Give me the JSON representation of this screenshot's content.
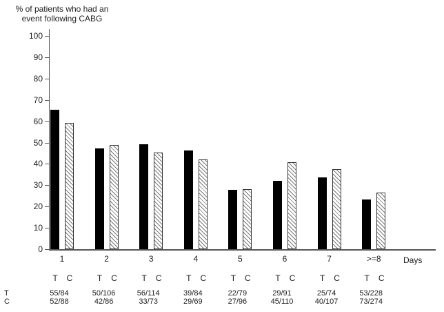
{
  "title": {
    "line1": "% of patients who had an",
    "line2": "event following CABG"
  },
  "footer": {
    "row_t_label": "T",
    "row_c_label": "C"
  },
  "chart_data": {
    "type": "bar",
    "title": "% of patients who had an event following CABG",
    "xlabel": "Days",
    "ylabel": "% of patients who had an event following CABG",
    "ylim": [
      0,
      100
    ],
    "yticks": [
      0,
      10,
      20,
      30,
      40,
      50,
      60,
      70,
      80,
      90,
      100
    ],
    "grid": false,
    "legend_position": "none",
    "bar_colors": {
      "T": "#000000",
      "C": "white-with-diagonal-hatch"
    },
    "categories": [
      "1",
      "2",
      "3",
      "4",
      "5",
      "6",
      "7",
      ">=8"
    ],
    "series": [
      {
        "name": "T",
        "style": "solid-black",
        "values": [
          65.5,
          47.2,
          49.1,
          46.4,
          27.8,
          31.9,
          33.8,
          23.2
        ],
        "fractions": [
          "55/84",
          "50/106",
          "56/114",
          "39/84",
          "22/79",
          "29/91",
          "25/74",
          "53/228"
        ]
      },
      {
        "name": "C",
        "style": "white-diagonal-hatch",
        "values": [
          59.1,
          48.8,
          45.2,
          42.0,
          28.1,
          40.9,
          37.4,
          26.6
        ],
        "fractions": [
          "52/88",
          "42/86",
          "33/73",
          "29/69",
          "27/96",
          "45/110",
          "40/107",
          "73/274"
        ]
      }
    ]
  }
}
